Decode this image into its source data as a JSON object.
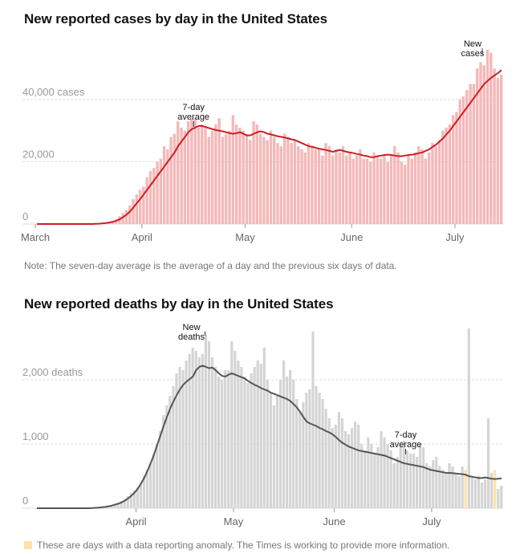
{
  "cases_chart": {
    "title": "New reported cases by day in the United States",
    "note": "Note: The seven-day average is the average of a day and the previous six days of data."
  },
  "deaths_chart": {
    "title": "New reported deaths by day in the United States"
  },
  "legend": {
    "anomaly_text": "These are days with a data reporting anomaly. The Times is working to provide more information.",
    "anomaly_color": "#fde2a6"
  },
  "colors": {
    "case_bar": "#f4b8b8",
    "case_line": "#cc1f24",
    "death_bar": "#d4d4d4",
    "death_line": "#555555",
    "grid": "#dddddd"
  },
  "chart_data": [
    {
      "type": "bar",
      "title": "New reported cases by day in the United States",
      "x_ticks": [
        "March",
        "April",
        "May",
        "June",
        "July"
      ],
      "y_ticks": [
        {
          "value": 0,
          "label": "0"
        },
        {
          "value": 20000,
          "label": "20,000"
        },
        {
          "value": 40000,
          "label": "40,000 cases"
        }
      ],
      "ylim": [
        0,
        60000
      ],
      "series": [
        {
          "name": "New cases",
          "values": [
            0,
            0,
            0,
            0,
            0,
            0,
            0,
            0,
            0,
            0,
            0,
            0,
            0,
            0,
            0,
            0,
            0,
            100,
            200,
            300,
            500,
            700,
            1000,
            1500,
            2500,
            3500,
            4500,
            6000,
            8000,
            9500,
            11000,
            12000,
            15000,
            17000,
            18000,
            20000,
            21000,
            25000,
            24000,
            28000,
            29000,
            33000,
            31000,
            30000,
            33000,
            34000,
            34000,
            31000,
            32000,
            31000,
            28000,
            30000,
            32000,
            34000,
            28000,
            29000,
            30000,
            35000,
            32000,
            31000,
            30000,
            29000,
            27000,
            33000,
            32000,
            29000,
            28000,
            27000,
            30000,
            28000,
            26000,
            25000,
            29000,
            28000,
            26000,
            27000,
            25000,
            24000,
            23000,
            26000,
            25000,
            24000,
            24000,
            22000,
            26000,
            25000,
            22000,
            24000,
            23000,
            25000,
            22000,
            23000,
            21000,
            22000,
            24000,
            21000,
            21000,
            20000,
            23000,
            22000,
            21000,
            22000,
            20000,
            22000,
            25000,
            23000,
            20000,
            19000,
            22000,
            21000,
            23000,
            25000,
            24000,
            21000,
            23000,
            26000,
            25000,
            27000,
            30000,
            31000,
            32000,
            35000,
            36000,
            40000,
            41000,
            43000,
            45000,
            45000,
            50000,
            52000,
            51000,
            56000,
            55000,
            50000,
            47000,
            48000
          ]
        },
        {
          "name": "7-day average",
          "values": [
            0,
            0,
            0,
            0,
            0,
            0,
            0,
            0,
            0,
            0,
            0,
            0,
            0,
            0,
            0,
            0,
            0,
            50,
            100,
            200,
            300,
            500,
            700,
            1000,
            1500,
            2200,
            3000,
            4000,
            5300,
            6700,
            8000,
            9500,
            11000,
            12500,
            14000,
            15500,
            17000,
            18500,
            20000,
            21500,
            23000,
            25000,
            26500,
            28000,
            29500,
            30500,
            31000,
            31500,
            31500,
            31200,
            30800,
            30500,
            30200,
            30000,
            29800,
            29500,
            29200,
            29000,
            29200,
            29500,
            29000,
            28500,
            28500,
            29000,
            29500,
            29800,
            29500,
            29000,
            28800,
            28500,
            28200,
            28000,
            27800,
            27500,
            27200,
            27000,
            26500,
            26000,
            25500,
            25000,
            24800,
            24500,
            24200,
            24000,
            23800,
            23500,
            23200,
            23500,
            23800,
            23500,
            23200,
            23000,
            22800,
            22500,
            22300,
            22000,
            21800,
            21500,
            21500,
            21800,
            22000,
            22200,
            22300,
            22200,
            22000,
            21800,
            21800,
            22000,
            22200,
            22300,
            22500,
            22800,
            23000,
            23500,
            24000,
            24800,
            25500,
            26500,
            27500,
            28800,
            30000,
            31500,
            33000,
            34500,
            36000,
            37500,
            39000,
            40500,
            42000,
            43500,
            45000,
            46000,
            47000,
            47800,
            48500,
            49500
          ]
        }
      ],
      "annotations": [
        "7-day average",
        "New cases"
      ]
    },
    {
      "type": "bar",
      "title": "New reported deaths by day in the United States",
      "x_ticks": [
        "April",
        "May",
        "June",
        "July"
      ],
      "y_ticks": [
        {
          "value": 0,
          "label": "0"
        },
        {
          "value": 1000,
          "label": "1,000"
        },
        {
          "value": 2000,
          "label": "2,000 deaths"
        }
      ],
      "ylim": [
        0,
        2800
      ],
      "series": [
        {
          "name": "New deaths",
          "values": [
            0,
            0,
            0,
            0,
            0,
            0,
            0,
            0,
            0,
            0,
            0,
            0,
            0,
            0,
            0,
            0,
            0,
            5,
            10,
            15,
            20,
            30,
            40,
            50,
            70,
            90,
            110,
            150,
            190,
            240,
            280,
            330,
            400,
            500,
            600,
            700,
            850,
            1000,
            1200,
            1450,
            1600,
            1750,
            1900,
            2100,
            2200,
            2150,
            2300,
            2400,
            2500,
            2450,
            2350,
            2400,
            2700,
            2600,
            2350,
            2200,
            2050,
            2000,
            2150,
            2150,
            2600,
            2450,
            2300,
            2200,
            2050,
            1950,
            2100,
            2200,
            2300,
            2250,
            2500,
            2000,
            1800,
            1600,
            1750,
            2000,
            2300,
            2050,
            2150,
            2000,
            1700,
            1500,
            1650,
            1800,
            1850,
            2750,
            1900,
            1800,
            1700,
            1550,
            1400,
            1250,
            1300,
            1500,
            1400,
            1200,
            1150,
            1250,
            1350,
            1300,
            1000,
            900,
            1100,
            1000,
            850,
            950,
            1200,
            1100,
            1000,
            900,
            700,
            800,
            1000,
            1050,
            900,
            850,
            850,
            800,
            1000,
            950,
            700,
            650,
            750,
            800,
            650,
            600,
            550,
            700,
            650,
            550,
            500,
            650,
            600,
            2800,
            500,
            450,
            500,
            400,
            450,
            1400,
            550,
            600,
            300,
            350
          ]
        },
        {
          "name": "7-day average",
          "values": [
            0,
            0,
            0,
            0,
            0,
            0,
            0,
            0,
            0,
            0,
            0,
            0,
            0,
            0,
            0,
            0,
            0,
            3,
            6,
            10,
            15,
            20,
            30,
            40,
            55,
            70,
            90,
            115,
            150,
            190,
            240,
            300,
            380,
            470,
            580,
            700,
            830,
            980,
            1130,
            1280,
            1420,
            1550,
            1660,
            1760,
            1850,
            1920,
            1970,
            2010,
            2050,
            2150,
            2200,
            2220,
            2200,
            2180,
            2190,
            2150,
            2100,
            2060,
            2050,
            2080,
            2100,
            2080,
            2060,
            2040,
            2020,
            1980,
            1950,
            1920,
            1900,
            1870,
            1850,
            1830,
            1800,
            1780,
            1760,
            1740,
            1720,
            1700,
            1670,
            1620,
            1570,
            1500,
            1420,
            1350,
            1320,
            1300,
            1280,
            1250,
            1230,
            1200,
            1180,
            1150,
            1110,
            1060,
            1020,
            990,
            960,
            940,
            920,
            900,
            890,
            880,
            870,
            860,
            850,
            840,
            830,
            820,
            800,
            780,
            760,
            740,
            720,
            700,
            690,
            680,
            670,
            660,
            650,
            640,
            620,
            600,
            590,
            580,
            570,
            560,
            550,
            550,
            545,
            540,
            535,
            530,
            520,
            500,
            490,
            480,
            470,
            470,
            480,
            470,
            460,
            455,
            460,
            465
          ]
        }
      ],
      "anomaly_days": [
        132,
        141
      ],
      "annotations": [
        "New deaths",
        "7-day average"
      ]
    }
  ],
  "annotation_labels": {
    "cases_avg_line1": "7-day",
    "cases_avg_line2": "average",
    "cases_new_line1": "New",
    "cases_new_line2": "cases",
    "deaths_new_line1": "New",
    "deaths_new_line2": "deaths",
    "deaths_avg_line1": "7-day",
    "deaths_avg_line2": "average"
  }
}
